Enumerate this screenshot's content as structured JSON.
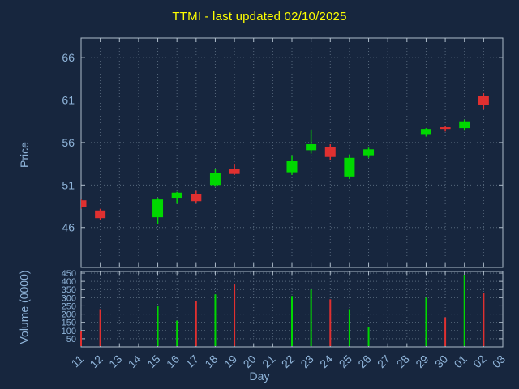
{
  "colors": {
    "background": "#17263e",
    "title": "#ffff00",
    "axis_text": "#8fb4d9",
    "grid": "#56687c",
    "border": "#aebcca",
    "up": "#00d800",
    "down": "#e03030"
  },
  "chart_data": [
    {
      "type": "candlestick",
      "title": "TTMI - last updated 02/10/2025",
      "ylabel": "Price",
      "xlabel": "",
      "ylim": [
        41.3,
        68.3
      ],
      "yticks": [
        46,
        51,
        56,
        61,
        66
      ],
      "grid": true,
      "legend": "none",
      "categories": [
        "11",
        "12",
        "13",
        "14",
        "15",
        "16",
        "17",
        "18",
        "19",
        "20",
        "21",
        "22",
        "23",
        "24",
        "25",
        "26",
        "27",
        "28",
        "29",
        "30",
        "01",
        "02",
        "03"
      ],
      "candles": [
        {
          "day": "11",
          "open": 49.2,
          "high": 49.4,
          "low": 48.2,
          "close": 48.4
        },
        {
          "day": "12",
          "open": 48.0,
          "high": 48.2,
          "low": 46.9,
          "close": 47.1
        },
        {
          "day": "15",
          "open": 47.2,
          "high": 49.5,
          "low": 46.4,
          "close": 49.3
        },
        {
          "day": "16",
          "open": 49.5,
          "high": 50.2,
          "low": 48.8,
          "close": 50.1
        },
        {
          "day": "17",
          "open": 49.9,
          "high": 50.3,
          "low": 48.9,
          "close": 49.1
        },
        {
          "day": "18",
          "open": 51.0,
          "high": 52.9,
          "low": 50.8,
          "close": 52.4
        },
        {
          "day": "19",
          "open": 52.9,
          "high": 53.5,
          "low": 52.2,
          "close": 52.3
        },
        {
          "day": "22",
          "open": 52.5,
          "high": 54.5,
          "low": 52.2,
          "close": 53.8
        },
        {
          "day": "23",
          "open": 55.1,
          "high": 57.5,
          "low": 54.7,
          "close": 55.8
        },
        {
          "day": "24",
          "open": 55.5,
          "high": 55.8,
          "low": 53.9,
          "close": 54.3
        },
        {
          "day": "25",
          "open": 52.0,
          "high": 54.6,
          "low": 51.7,
          "close": 54.2
        },
        {
          "day": "26",
          "open": 54.5,
          "high": 55.4,
          "low": 54.2,
          "close": 55.2
        },
        {
          "day": "29",
          "open": 57.0,
          "high": 57.7,
          "low": 56.7,
          "close": 57.6
        },
        {
          "day": "30",
          "open": 57.8,
          "high": 57.9,
          "low": 57.3,
          "close": 57.6
        },
        {
          "day": "01",
          "open": 57.7,
          "high": 58.7,
          "low": 57.4,
          "close": 58.5
        },
        {
          "day": "02",
          "open": 61.5,
          "high": 61.8,
          "low": 59.9,
          "close": 60.4
        }
      ]
    },
    {
      "type": "bar",
      "ylabel": "Volume (0000)",
      "xlabel": "Day",
      "ylim": [
        0,
        460
      ],
      "yticks": [
        50,
        100,
        150,
        200,
        250,
        300,
        350,
        400,
        450
      ],
      "grid": true,
      "categories": [
        "11",
        "12",
        "13",
        "14",
        "15",
        "16",
        "17",
        "18",
        "19",
        "20",
        "21",
        "22",
        "23",
        "24",
        "25",
        "26",
        "27",
        "28",
        "29",
        "30",
        "01",
        "02",
        "03"
      ],
      "bars": [
        {
          "day": "11",
          "value": 95,
          "dir": "down"
        },
        {
          "day": "12",
          "value": 230,
          "dir": "down"
        },
        {
          "day": "15",
          "value": 250,
          "dir": "up"
        },
        {
          "day": "16",
          "value": 160,
          "dir": "up"
        },
        {
          "day": "17",
          "value": 280,
          "dir": "down"
        },
        {
          "day": "18",
          "value": 320,
          "dir": "up"
        },
        {
          "day": "19",
          "value": 380,
          "dir": "down"
        },
        {
          "day": "22",
          "value": 310,
          "dir": "up"
        },
        {
          "day": "23",
          "value": 350,
          "dir": "up"
        },
        {
          "day": "24",
          "value": 290,
          "dir": "down"
        },
        {
          "day": "25",
          "value": 230,
          "dir": "up"
        },
        {
          "day": "26",
          "value": 120,
          "dir": "up"
        },
        {
          "day": "29",
          "value": 300,
          "dir": "up"
        },
        {
          "day": "30",
          "value": 180,
          "dir": "down"
        },
        {
          "day": "01",
          "value": 440,
          "dir": "up"
        },
        {
          "day": "02",
          "value": 330,
          "dir": "down"
        }
      ]
    }
  ]
}
